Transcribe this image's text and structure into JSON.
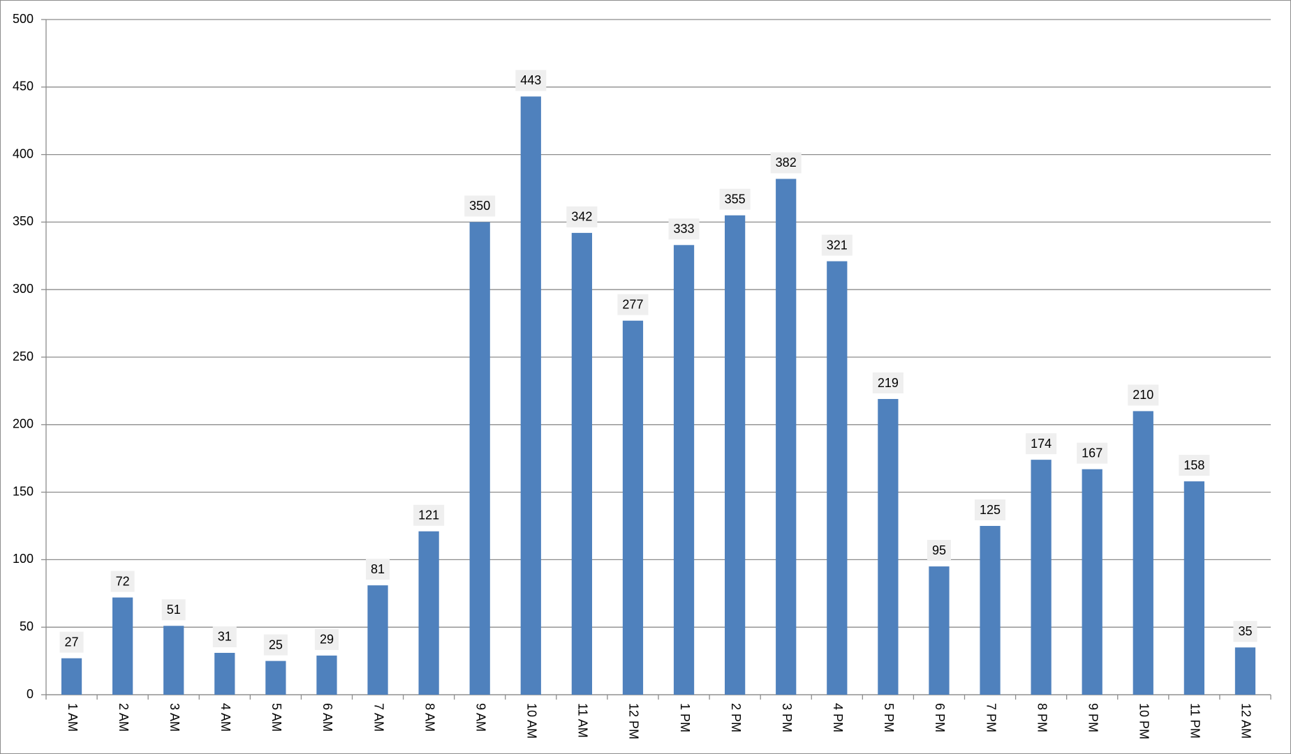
{
  "chart_data": {
    "type": "bar",
    "categories": [
      "1 AM",
      "2 AM",
      "3 AM",
      "4 AM",
      "5 AM",
      "6 AM",
      "7 AM",
      "8 AM",
      "9 AM",
      "10 AM",
      "11 AM",
      "12 PM",
      "1 PM",
      "2 PM",
      "3 PM",
      "4 PM",
      "5 PM",
      "6 PM",
      "7 PM",
      "8 PM",
      "9 PM",
      "10 PM",
      "11 PM",
      "12 AM"
    ],
    "values": [
      27,
      72,
      51,
      31,
      25,
      29,
      81,
      121,
      350,
      443,
      342,
      277,
      333,
      355,
      382,
      321,
      219,
      95,
      125,
      174,
      167,
      210,
      158,
      35
    ],
    "color": "#4f81bd",
    "ylim": [
      0,
      500
    ],
    "yticks": [
      0,
      50,
      100,
      150,
      200,
      250,
      300,
      350,
      400,
      450,
      500
    ],
    "grid": true
  }
}
